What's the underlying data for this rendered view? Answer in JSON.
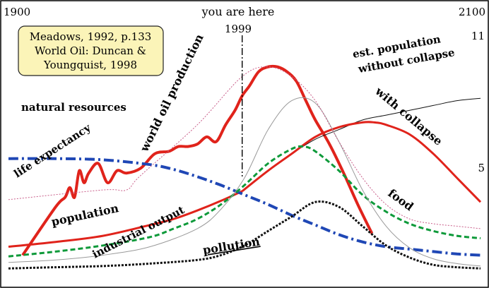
{
  "chart_data": {
    "type": "line",
    "xlim": [
      1900,
      2100
    ],
    "grid": false,
    "legend": "none",
    "corner_labels": {
      "start_year": "1900",
      "end_year": "2100"
    },
    "marker": {
      "caption": "you are here",
      "year_label": "1999",
      "x": 1999
    },
    "population_ticks": {
      "high": "11",
      "low": "5"
    },
    "citation": [
      "Meadows, 1992, p.133",
      "World Oil: Duncan &",
      "Youngquist, 1998"
    ],
    "colors": {
      "red": "#e0231b",
      "blue": "#1f47b5",
      "green": "#0e9a3a",
      "black": "#111111",
      "gray": "#9a9a9a",
      "pink": "#c95e8a",
      "citation_bg": "#fbf4b8"
    },
    "labels": {
      "world_oil": "world oil production",
      "est_population_1": "est. population",
      "est_population_2": "without collapse",
      "with_collapse": "with collapse",
      "natural_resources": "natural resources",
      "life_expectancy": "life expectancy",
      "population": "population",
      "industrial_output": "industrial output",
      "food": "food",
      "pollution": "pollution"
    },
    "series": [
      {
        "key": "world_oil",
        "color": "red",
        "width": 4,
        "dash": "",
        "x": [
          1906,
          1920,
          1924,
          1926,
          1928,
          1930,
          1932,
          1934,
          1938,
          1942,
          1946,
          1950,
          1956,
          1962,
          1968,
          1972,
          1976,
          1980,
          1984,
          1988,
          1992,
          1996,
          1999,
          2002,
          2006,
          2010,
          2014,
          2018,
          2022,
          2026,
          2030,
          2036,
          2042,
          2048,
          2054
        ],
        "y": [
          6,
          26,
          30,
          34,
          30,
          41,
          36,
          40,
          44,
          36,
          41,
          40,
          42,
          48,
          49,
          51,
          51,
          52,
          55,
          53,
          60,
          66,
          72,
          76,
          82,
          84,
          84,
          82,
          78,
          70,
          62,
          52,
          40,
          27,
          15
        ]
      },
      {
        "key": "pop_without_collapse",
        "color": "black",
        "width": 1,
        "dash": "",
        "x": [
          1999,
          2010,
          2020,
          2030,
          2040,
          2050,
          2060,
          2070,
          2080,
          2090,
          2100
        ],
        "y": [
          32.5,
          41,
          48,
          54,
          58,
          62,
          64,
          66,
          68,
          70,
          71
        ]
      },
      {
        "key": "pop_with_collapse",
        "color": "red",
        "width": 3,
        "dash": "",
        "x": [
          1999,
          2010,
          2020,
          2030,
          2040,
          2050,
          2055,
          2060,
          2070,
          2080,
          2090,
          2100
        ],
        "y": [
          32.5,
          41,
          48,
          55,
          59,
          61,
          61,
          60,
          56,
          48,
          38,
          28
        ]
      },
      {
        "key": "population",
        "color": "red",
        "width": 3,
        "dash": "",
        "x": [
          1900,
          1920,
          1940,
          1960,
          1970,
          1980,
          1990,
          1999
        ],
        "y": [
          9.5,
          11.5,
          14,
          18.5,
          21,
          24.5,
          28.5,
          32.5
        ]
      },
      {
        "key": "natural_resources",
        "color": "blue",
        "width": 4,
        "dash": "14 5 3 5",
        "x": [
          1900,
          1920,
          1940,
          1960,
          1970,
          1980,
          1990,
          2000,
          2010,
          2020,
          2030,
          2040,
          2050,
          2060,
          2070,
          2080,
          2090,
          2100
        ],
        "y": [
          46,
          46,
          45.5,
          43.5,
          41.5,
          38.5,
          35,
          31,
          27,
          22.5,
          18.5,
          14.5,
          11.5,
          9.5,
          8.5,
          7.5,
          6.5,
          6
        ]
      },
      {
        "key": "food",
        "color": "green",
        "width": 3,
        "dash": "7 4",
        "x": [
          1900,
          1920,
          1940,
          1960,
          1970,
          1980,
          1990,
          2000,
          2010,
          2020,
          2025,
          2030,
          2040,
          2050,
          2060,
          2070,
          2080,
          2090,
          2100
        ],
        "y": [
          5.5,
          7.5,
          10,
          13.5,
          17,
          21,
          27,
          35,
          44,
          50,
          51,
          49,
          41,
          31,
          24,
          19,
          16,
          14,
          13
        ]
      },
      {
        "key": "industrial_output",
        "color": "gray",
        "width": 1,
        "dash": "",
        "x": [
          1900,
          1920,
          1940,
          1960,
          1980,
          1990,
          2000,
          2010,
          2020,
          2030,
          2040,
          2050,
          2060,
          2070,
          2080,
          2090,
          2100
        ],
        "y": [
          3,
          4,
          6,
          9.5,
          17,
          25,
          38,
          58,
          70,
          69,
          53,
          33,
          18,
          9,
          4.5,
          2.5,
          1.5
        ]
      },
      {
        "key": "life_expectancy",
        "color": "pink",
        "width": 1,
        "dash": "2 2",
        "x": [
          1900,
          1940,
          1950,
          1956,
          1980,
          1999,
          2010,
          2020,
          2030,
          2040,
          2050,
          2060,
          2070,
          2080,
          2090,
          2100
        ],
        "y": [
          29,
          33,
          33,
          39,
          60,
          80,
          84,
          80,
          70,
          53,
          38,
          27,
          21,
          19,
          18,
          17
        ]
      },
      {
        "key": "pollution",
        "color": "black",
        "width": 3,
        "dash": "3 2",
        "x": [
          1900,
          1920,
          1940,
          1960,
          1980,
          1990,
          2000,
          2010,
          2020,
          2030,
          2040,
          2050,
          2060,
          2070,
          2080,
          2090,
          2100
        ],
        "y": [
          0.5,
          1,
          1.5,
          2.5,
          4,
          6,
          10,
          16,
          22,
          28,
          26,
          18,
          10,
          5,
          2,
          1,
          0.5
        ]
      }
    ]
  }
}
